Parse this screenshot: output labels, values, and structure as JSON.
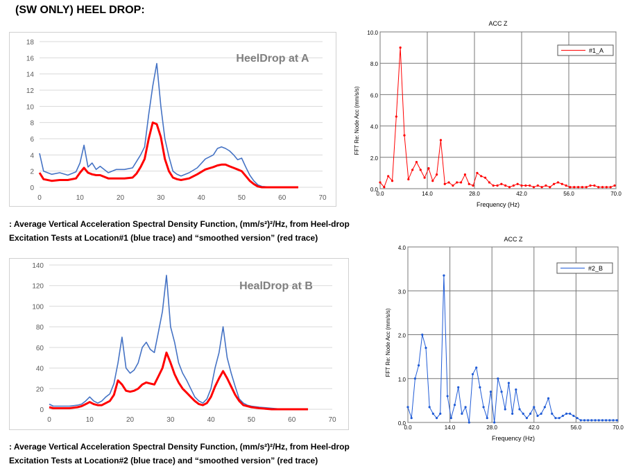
{
  "heading": "(SW ONLY) HEEL DROP:",
  "caption_a": {
    "line1": ": Average Vertical Acceleration Spectral Density Function, (mm/s²)²/Hz, from Heel-drop",
    "line2": "Excitation Tests at Location#1 (blue trace) and “smoothed version” (red trace)"
  },
  "caption_b": {
    "line1": ": Average Vertical Acceleration Spectral Density Function, (mm/s²)²/Hz, from Heel-drop",
    "line2": "Excitation Tests at Location#2 (blue trace) and “smoothed version” (red trace)"
  },
  "chart_data": [
    {
      "type": "line",
      "title": "HeelDrop at A",
      "xlim": [
        0,
        70
      ],
      "ylim": [
        0,
        18
      ],
      "xticks": [
        "0",
        "10",
        "20",
        "30",
        "40",
        "50",
        "60",
        "70"
      ],
      "yticks": [
        "0",
        "2",
        "4",
        "6",
        "8",
        "10",
        "12",
        "14",
        "16",
        "18"
      ],
      "grid": "horizontal",
      "colors": {
        "raw": "#4472c4",
        "smoothed": "#ff0000"
      },
      "series": [
        {
          "x": [
            0,
            1,
            3,
            5,
            7,
            9,
            10,
            11,
            12,
            13,
            14,
            15,
            17,
            19,
            21,
            23,
            24,
            25,
            26,
            27,
            28,
            29,
            30,
            31,
            32,
            33,
            34,
            35,
            37,
            39,
            41,
            43,
            44,
            45,
            46,
            47,
            48,
            49,
            50,
            51,
            52,
            53,
            54,
            55,
            58,
            61,
            64
          ],
          "values": [
            4.2,
            2.0,
            1.6,
            1.8,
            1.5,
            1.9,
            3.0,
            5.2,
            2.5,
            3.0,
            2.2,
            2.6,
            1.8,
            2.2,
            2.2,
            2.4,
            3.2,
            4.0,
            5.0,
            9.0,
            12.5,
            15.3,
            10.0,
            6.0,
            3.8,
            2.0,
            1.6,
            1.4,
            1.8,
            2.4,
            3.5,
            4.0,
            4.8,
            5.0,
            4.8,
            4.5,
            4.0,
            3.4,
            3.6,
            2.5,
            1.5,
            0.8,
            0.3,
            0.1,
            0,
            0,
            0
          ]
        },
        {
          "x": [
            0,
            1,
            3,
            5,
            7,
            9,
            10,
            11,
            12,
            13,
            14,
            15,
            17,
            19,
            21,
            23,
            24,
            25,
            26,
            27,
            28,
            29,
            30,
            31,
            32,
            33,
            34,
            35,
            37,
            39,
            41,
            43,
            44,
            45,
            46,
            47,
            48,
            49,
            50,
            51,
            52,
            53,
            54,
            55,
            58,
            61,
            64
          ],
          "values": [
            1.8,
            1.0,
            0.8,
            0.9,
            0.9,
            1.1,
            1.8,
            2.4,
            1.8,
            1.6,
            1.5,
            1.5,
            1.1,
            1.1,
            1.1,
            1.2,
            1.7,
            2.5,
            3.5,
            6.0,
            8.0,
            7.8,
            6.2,
            3.5,
            2.0,
            1.2,
            1.0,
            0.9,
            1.1,
            1.6,
            2.2,
            2.5,
            2.7,
            2.8,
            2.8,
            2.6,
            2.4,
            2.2,
            2.0,
            1.4,
            0.8,
            0.4,
            0.1,
            0,
            0,
            0,
            0
          ]
        }
      ]
    },
    {
      "type": "line",
      "title": "ACC Z",
      "xlabel": "Frequency (Hz)",
      "ylabel": "FFT Re: Node Acc (mm/s/s)",
      "xlim": [
        0,
        70
      ],
      "ylim": [
        0,
        10
      ],
      "xticks": [
        "0.0",
        "14.0",
        "28.0",
        "42.0",
        "56.0",
        "70.0"
      ],
      "yticks": [
        "0.0",
        "2.0",
        "4.0",
        "6.0",
        "8.0",
        "10.0"
      ],
      "grid": true,
      "legend": "top-right",
      "colors": {
        "line": "#ff0000"
      },
      "series": [
        {
          "name": "#1_A",
          "x": [
            0,
            1.2,
            2.4,
            3.6,
            4.8,
            6.0,
            7.2,
            8.4,
            9.6,
            10.8,
            12.0,
            13.2,
            14.4,
            15.6,
            16.8,
            18.0,
            19.2,
            20.4,
            21.6,
            22.8,
            24.0,
            25.2,
            26.4,
            27.6,
            28.8,
            30.0,
            31.2,
            32.4,
            33.6,
            34.8,
            36.0,
            37.2,
            38.4,
            39.6,
            40.8,
            42.0,
            43.2,
            44.4,
            45.6,
            46.8,
            48.0,
            49.2,
            50.4,
            51.6,
            52.8,
            54.0,
            55.2,
            56.4,
            57.6,
            58.8,
            60.0,
            61.2,
            62.4,
            63.6,
            64.8,
            66.0,
            67.2,
            68.4,
            69.6
          ],
          "values": [
            0.4,
            0.1,
            0.8,
            0.5,
            4.6,
            9.0,
            3.4,
            0.6,
            1.2,
            1.7,
            1.2,
            0.7,
            1.3,
            0.5,
            0.9,
            3.1,
            0.3,
            0.4,
            0.2,
            0.4,
            0.4,
            0.9,
            0.3,
            0.2,
            1.0,
            0.8,
            0.7,
            0.4,
            0.2,
            0.2,
            0.3,
            0.2,
            0.1,
            0.2,
            0.3,
            0.2,
            0.2,
            0.2,
            0.1,
            0.2,
            0.1,
            0.2,
            0.1,
            0.3,
            0.4,
            0.3,
            0.2,
            0.1,
            0.1,
            0.1,
            0.1,
            0.1,
            0.2,
            0.2,
            0.1,
            0.1,
            0.1,
            0.1,
            0.2
          ]
        }
      ]
    },
    {
      "type": "line",
      "title": "HealDrop at B",
      "xlim": [
        0,
        70
      ],
      "ylim": [
        0,
        140
      ],
      "xticks": [
        "0",
        "10",
        "20",
        "30",
        "40",
        "50",
        "60",
        "70"
      ],
      "yticks": [
        "0",
        "20",
        "40",
        "60",
        "80",
        "100",
        "120",
        "140"
      ],
      "grid": "horizontal",
      "colors": {
        "raw": "#4472c4",
        "smoothed": "#ff0000"
      },
      "series": [
        {
          "x": [
            0,
            1,
            3,
            5,
            7,
            8,
            9,
            10,
            11,
            12,
            13,
            14,
            15,
            16,
            17,
            18,
            19,
            20,
            21,
            22,
            23,
            24,
            25,
            26,
            27,
            28,
            29,
            30,
            31,
            32,
            33,
            34,
            35,
            36,
            37,
            38,
            39,
            40,
            41,
            42,
            43,
            44,
            45,
            46,
            47,
            48,
            49,
            50,
            52,
            55,
            58,
            61,
            64
          ],
          "values": [
            5,
            3,
            3,
            3,
            4,
            5,
            8,
            12,
            8,
            6,
            8,
            12,
            15,
            25,
            45,
            70,
            40,
            35,
            38,
            45,
            60,
            65,
            58,
            55,
            75,
            95,
            130,
            80,
            65,
            45,
            35,
            28,
            20,
            12,
            8,
            6,
            10,
            20,
            40,
            55,
            80,
            50,
            35,
            22,
            10,
            6,
            4,
            3,
            2,
            1,
            0,
            0,
            0
          ]
        },
        {
          "x": [
            0,
            1,
            3,
            5,
            7,
            8,
            9,
            10,
            11,
            12,
            13,
            14,
            15,
            16,
            17,
            18,
            19,
            20,
            21,
            22,
            23,
            24,
            25,
            26,
            27,
            28,
            29,
            30,
            31,
            32,
            33,
            34,
            35,
            36,
            37,
            38,
            39,
            40,
            41,
            42,
            43,
            44,
            45,
            46,
            47,
            48,
            49,
            50,
            52,
            55,
            58,
            61,
            64
          ],
          "values": [
            2,
            1,
            1,
            1,
            2,
            3,
            5,
            7,
            5,
            4,
            4,
            6,
            8,
            14,
            28,
            24,
            18,
            17,
            18,
            20,
            24,
            26,
            25,
            24,
            32,
            40,
            55,
            45,
            34,
            26,
            20,
            16,
            12,
            8,
            5,
            4,
            6,
            12,
            22,
            30,
            37,
            30,
            22,
            14,
            8,
            4,
            3,
            2,
            1,
            0,
            0,
            0,
            0
          ]
        }
      ]
    },
    {
      "type": "line",
      "title": "ACC Z",
      "xlabel": "Frequency (Hz)",
      "ylabel": "FFT Re: Node Acc (mm/s/s)",
      "xlim": [
        0,
        70
      ],
      "ylim": [
        0,
        4
      ],
      "xticks": [
        "0.0",
        "14.0",
        "28.0",
        "42.0",
        "56.0",
        "70.0"
      ],
      "yticks": [
        "0.0",
        "1.0",
        "2.0",
        "3.0",
        "4.0"
      ],
      "grid": true,
      "legend": "top-right",
      "colors": {
        "line": "#1f5bd6"
      },
      "series": [
        {
          "name": "#2_B",
          "x": [
            0,
            1.2,
            2.4,
            3.6,
            4.8,
            6.0,
            7.2,
            8.4,
            9.6,
            10.8,
            12.0,
            13.2,
            14.4,
            15.6,
            16.8,
            18.0,
            19.2,
            20.4,
            21.6,
            22.8,
            24.0,
            25.2,
            26.4,
            27.6,
            28.8,
            30.0,
            31.2,
            32.4,
            33.6,
            34.8,
            36.0,
            37.2,
            38.4,
            39.6,
            40.8,
            42.0,
            43.2,
            44.4,
            45.6,
            46.8,
            48.0,
            49.2,
            50.4,
            51.6,
            52.8,
            54.0,
            55.2,
            56.4,
            57.6,
            58.8,
            60.0,
            61.2,
            62.4,
            63.6,
            64.8,
            66.0,
            67.2,
            68.4,
            69.6
          ],
          "values": [
            0.35,
            0.1,
            1.0,
            1.3,
            2.0,
            1.7,
            0.35,
            0.2,
            0.1,
            0.2,
            3.35,
            0.6,
            0.1,
            0.4,
            0.8,
            0.2,
            0.35,
            0.0,
            1.1,
            1.25,
            0.8,
            0.35,
            0.1,
            0.7,
            0.0,
            1.0,
            0.7,
            0.3,
            0.9,
            0.2,
            0.75,
            0.3,
            0.2,
            0.1,
            0.2,
            0.35,
            0.15,
            0.2,
            0.35,
            0.55,
            0.2,
            0.1,
            0.1,
            0.15,
            0.2,
            0.2,
            0.15,
            0.1,
            0.05,
            0.05,
            0.05,
            0.05,
            0.05,
            0.05,
            0.05,
            0.05,
            0.05,
            0.05,
            0.05
          ]
        }
      ]
    }
  ]
}
